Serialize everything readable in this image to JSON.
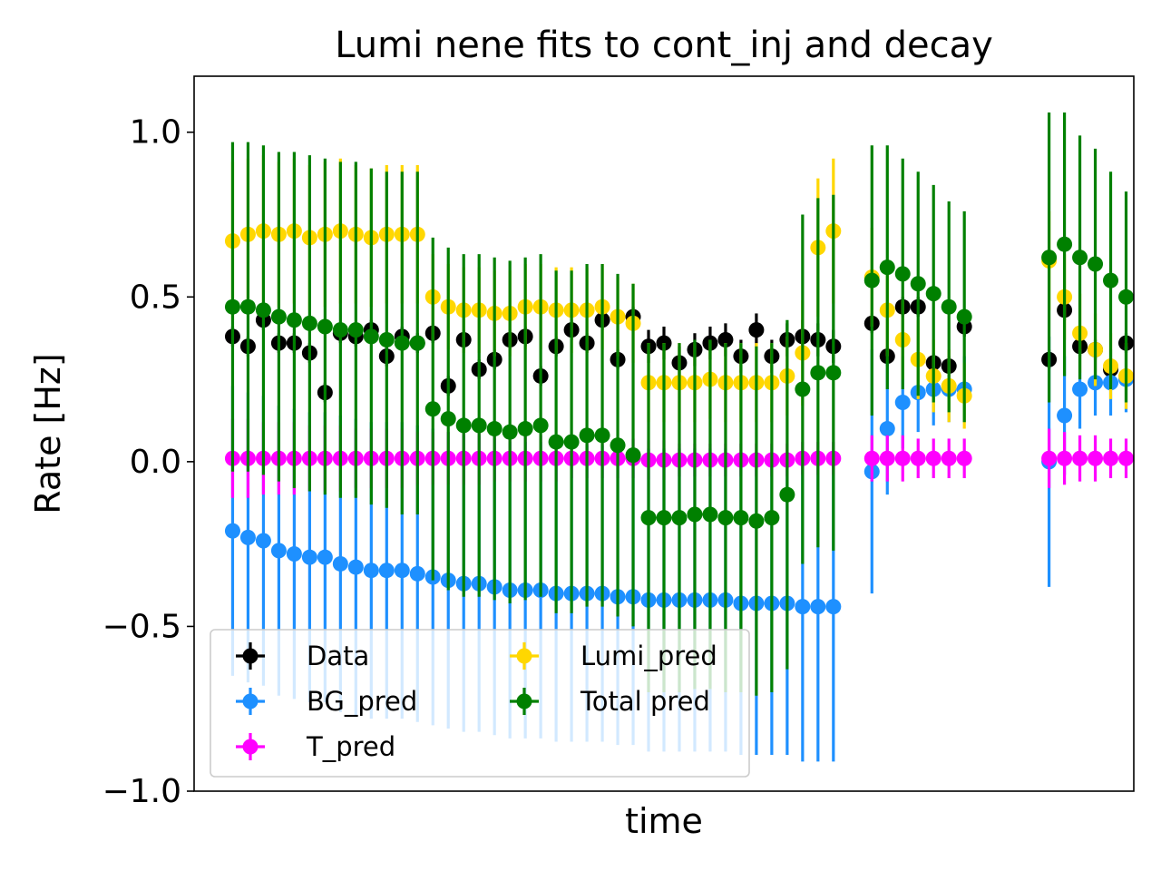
{
  "chart_data": {
    "type": "scatter",
    "title": "Lumi nene fits to cont_inj and decay",
    "xlabel": "time",
    "ylabel": "Rate [Hz]",
    "ylim": [
      -1.0,
      1.17
    ],
    "xlim": [
      -2.5,
      58.5
    ],
    "x_ticks_shown": false,
    "y_ticks": [
      1.0,
      0.5,
      0.0,
      -0.5,
      -1.0
    ],
    "y_tick_labels": [
      "1.0",
      "0.5",
      "0.0",
      "−0.5",
      "−1.0"
    ],
    "grid": false,
    "legend": {
      "placement": "lower-left",
      "columns": 2
    },
    "x": [
      0,
      1,
      2,
      3,
      4,
      5,
      6,
      7,
      8,
      9,
      10,
      11,
      12,
      13,
      14,
      15,
      16,
      17,
      18,
      19,
      20,
      21,
      22,
      23,
      24,
      25,
      26,
      27,
      28,
      29,
      30,
      31,
      32,
      33,
      34,
      35,
      36,
      37,
      38,
      39,
      40,
      41,
      42,
      43,
      44,
      45,
      46,
      47,
      48,
      49,
      50,
      51,
      52,
      53,
      54,
      55,
      56,
      57
    ],
    "series": [
      {
        "name": "Data",
        "color": "#000000",
        "values": [
          0.38,
          0.35,
          0.43,
          0.36,
          0.36,
          0.33,
          0.21,
          0.39,
          0.38,
          0.4,
          0.32,
          0.38,
          0.36,
          0.39,
          0.23,
          0.37,
          0.28,
          0.31,
          0.37,
          0.38,
          0.26,
          0.35,
          0.4,
          0.36,
          0.43,
          0.31,
          0.44,
          0.35,
          0.36,
          0.3,
          0.34,
          0.36,
          0.37,
          0.32,
          0.4,
          0.32,
          0.37,
          0.38,
          0.37,
          0.35,
          0.42,
          0.32,
          0.47,
          0.47,
          0.3,
          0.29,
          0.41,
          0.31,
          0.46,
          0.35,
          0.34,
          0.28,
          0.36,
          0.37,
          0.38,
          0.23,
          0.25,
          0.21
        ],
        "errors": [
          0.03,
          0.03,
          0.03,
          0.03,
          0.03,
          0.03,
          0.03,
          0.03,
          0.03,
          0.03,
          0.03,
          0.03,
          0.03,
          0.03,
          0.03,
          0.03,
          0.03,
          0.03,
          0.03,
          0.03,
          0.03,
          0.03,
          0.03,
          0.03,
          0.03,
          0.03,
          0.03,
          0.05,
          0.05,
          0.05,
          0.05,
          0.05,
          0.05,
          0.05,
          0.05,
          0.05,
          0.05,
          0.05,
          0.05,
          0.05,
          0.03,
          0.03,
          0.03,
          0.03,
          0.03,
          0.03,
          0.03,
          0.03,
          0.03,
          0.03,
          0.03,
          0.03,
          0.03,
          0.03,
          0.03,
          0.03,
          0.03,
          0.03
        ]
      },
      {
        "name": "BG_pred",
        "color": "#1e90ff",
        "values": [
          -0.21,
          -0.23,
          -0.24,
          -0.27,
          -0.28,
          -0.29,
          -0.29,
          -0.31,
          -0.32,
          -0.33,
          -0.33,
          -0.33,
          -0.34,
          -0.35,
          -0.36,
          -0.37,
          -0.37,
          -0.38,
          -0.39,
          -0.39,
          -0.39,
          -0.4,
          -0.4,
          -0.4,
          -0.4,
          -0.41,
          -0.41,
          -0.42,
          -0.42,
          -0.42,
          -0.42,
          -0.42,
          -0.42,
          -0.43,
          -0.43,
          -0.43,
          -0.43,
          -0.44,
          -0.44,
          -0.44,
          -0.03,
          0.1,
          0.18,
          0.21,
          0.22,
          0.22,
          0.22,
          0.0,
          0.14,
          0.22,
          0.24,
          0.24,
          0.25,
          0.24,
          0.24,
          0.23,
          0.22,
          0.23
        ],
        "errors": [
          0.44,
          0.44,
          0.44,
          0.44,
          0.44,
          0.44,
          0.44,
          0.45,
          0.45,
          0.45,
          0.45,
          0.45,
          0.45,
          0.45,
          0.45,
          0.45,
          0.45,
          0.45,
          0.45,
          0.45,
          0.45,
          0.45,
          0.45,
          0.45,
          0.45,
          0.45,
          0.45,
          0.46,
          0.46,
          0.46,
          0.46,
          0.46,
          0.46,
          0.46,
          0.46,
          0.46,
          0.46,
          0.47,
          0.47,
          0.47,
          0.37,
          0.2,
          0.14,
          0.12,
          0.11,
          0.1,
          0.1,
          0.38,
          0.18,
          0.12,
          0.1,
          0.1,
          0.1,
          0.1,
          0.1,
          0.1,
          0.1,
          0.1
        ]
      },
      {
        "name": "T_pred",
        "color": "#ff00ff",
        "values": [
          0.01,
          0.01,
          0.01,
          0.01,
          0.01,
          0.01,
          0.01,
          0.01,
          0.01,
          0.01,
          0.01,
          0.01,
          0.01,
          0.01,
          0.01,
          0.01,
          0.01,
          0.01,
          0.01,
          0.01,
          0.01,
          0.01,
          0.01,
          0.01,
          0.01,
          0.01,
          0.01,
          0.005,
          0.005,
          0.005,
          0.005,
          0.005,
          0.005,
          0.005,
          0.005,
          0.005,
          0.005,
          0.01,
          0.01,
          0.01,
          0.01,
          0.01,
          0.01,
          0.01,
          0.01,
          0.01,
          0.01,
          0.01,
          0.01,
          0.01,
          0.01,
          0.01,
          0.01,
          0.01,
          0.01,
          0.01,
          0.01,
          0.01
        ],
        "errors": [
          0.12,
          0.12,
          0.11,
          0.11,
          0.11,
          0.1,
          0.1,
          0.1,
          0.09,
          0.09,
          0.09,
          0.09,
          0.08,
          0.08,
          0.08,
          0.08,
          0.08,
          0.07,
          0.07,
          0.07,
          0.07,
          0.07,
          0.06,
          0.06,
          0.06,
          0.06,
          0.06,
          0.06,
          0.06,
          0.05,
          0.05,
          0.05,
          0.05,
          0.05,
          0.05,
          0.05,
          0.05,
          0.05,
          0.05,
          0.05,
          0.07,
          0.07,
          0.07,
          0.06,
          0.06,
          0.06,
          0.06,
          0.09,
          0.08,
          0.07,
          0.07,
          0.06,
          0.06,
          0.06,
          0.06,
          0.06,
          0.06,
          0.06
        ]
      },
      {
        "name": "Lumi_pred",
        "color": "#ffd700",
        "values": [
          0.67,
          0.69,
          0.7,
          0.69,
          0.7,
          0.68,
          0.69,
          0.7,
          0.69,
          0.68,
          0.69,
          0.69,
          0.69,
          0.5,
          0.47,
          0.46,
          0.46,
          0.45,
          0.45,
          0.47,
          0.47,
          0.46,
          0.46,
          0.46,
          0.47,
          0.44,
          0.42,
          0.24,
          0.24,
          0.24,
          0.24,
          0.25,
          0.24,
          0.24,
          0.24,
          0.24,
          0.26,
          0.33,
          0.65,
          0.7,
          0.56,
          0.46,
          0.37,
          0.31,
          0.26,
          0.23,
          0.2,
          0.61,
          0.5,
          0.39,
          0.34,
          0.29,
          0.26,
          0.24,
          0.2,
          0.18,
          0.2,
          0.18
        ],
        "errors": [
          0.24,
          0.23,
          0.23,
          0.22,
          0.22,
          0.22,
          0.22,
          0.22,
          0.21,
          0.21,
          0.21,
          0.21,
          0.21,
          0.13,
          0.13,
          0.13,
          0.13,
          0.13,
          0.13,
          0.13,
          0.13,
          0.13,
          0.13,
          0.13,
          0.13,
          0.12,
          0.12,
          0.12,
          0.12,
          0.12,
          0.12,
          0.12,
          0.12,
          0.12,
          0.12,
          0.12,
          0.12,
          0.16,
          0.21,
          0.22,
          0.15,
          0.14,
          0.12,
          0.12,
          0.11,
          0.11,
          0.1,
          0.15,
          0.13,
          0.12,
          0.11,
          0.1,
          0.1,
          0.1,
          0.09,
          0.09,
          0.09,
          0.09
        ]
      },
      {
        "name": "Total pred",
        "color": "#008000",
        "values": [
          0.47,
          0.47,
          0.46,
          0.44,
          0.43,
          0.42,
          0.41,
          0.4,
          0.4,
          0.38,
          0.37,
          0.36,
          0.36,
          0.16,
          0.13,
          0.11,
          0.11,
          0.1,
          0.09,
          0.1,
          0.11,
          0.06,
          0.06,
          0.08,
          0.08,
          0.05,
          0.02,
          -0.17,
          -0.17,
          -0.17,
          -0.16,
          -0.16,
          -0.17,
          -0.17,
          -0.18,
          -0.17,
          -0.1,
          0.22,
          0.27,
          0.27,
          0.55,
          0.59,
          0.57,
          0.54,
          0.51,
          0.47,
          0.44,
          0.62,
          0.66,
          0.62,
          0.6,
          0.55,
          0.5,
          0.45,
          0.42,
          0.42,
          0.4,
          0.38
        ],
        "errors": [
          0.5,
          0.5,
          0.5,
          0.5,
          0.51,
          0.51,
          0.51,
          0.51,
          0.51,
          0.51,
          0.51,
          0.52,
          0.52,
          0.52,
          0.52,
          0.52,
          0.52,
          0.52,
          0.52,
          0.52,
          0.52,
          0.52,
          0.52,
          0.52,
          0.52,
          0.52,
          0.52,
          0.53,
          0.53,
          0.53,
          0.53,
          0.53,
          0.53,
          0.53,
          0.53,
          0.53,
          0.53,
          0.53,
          0.53,
          0.54,
          0.41,
          0.37,
          0.35,
          0.34,
          0.33,
          0.32,
          0.32,
          0.44,
          0.4,
          0.37,
          0.35,
          0.33,
          0.32,
          0.31,
          0.31,
          0.3,
          0.3,
          0.3
        ]
      }
    ]
  }
}
